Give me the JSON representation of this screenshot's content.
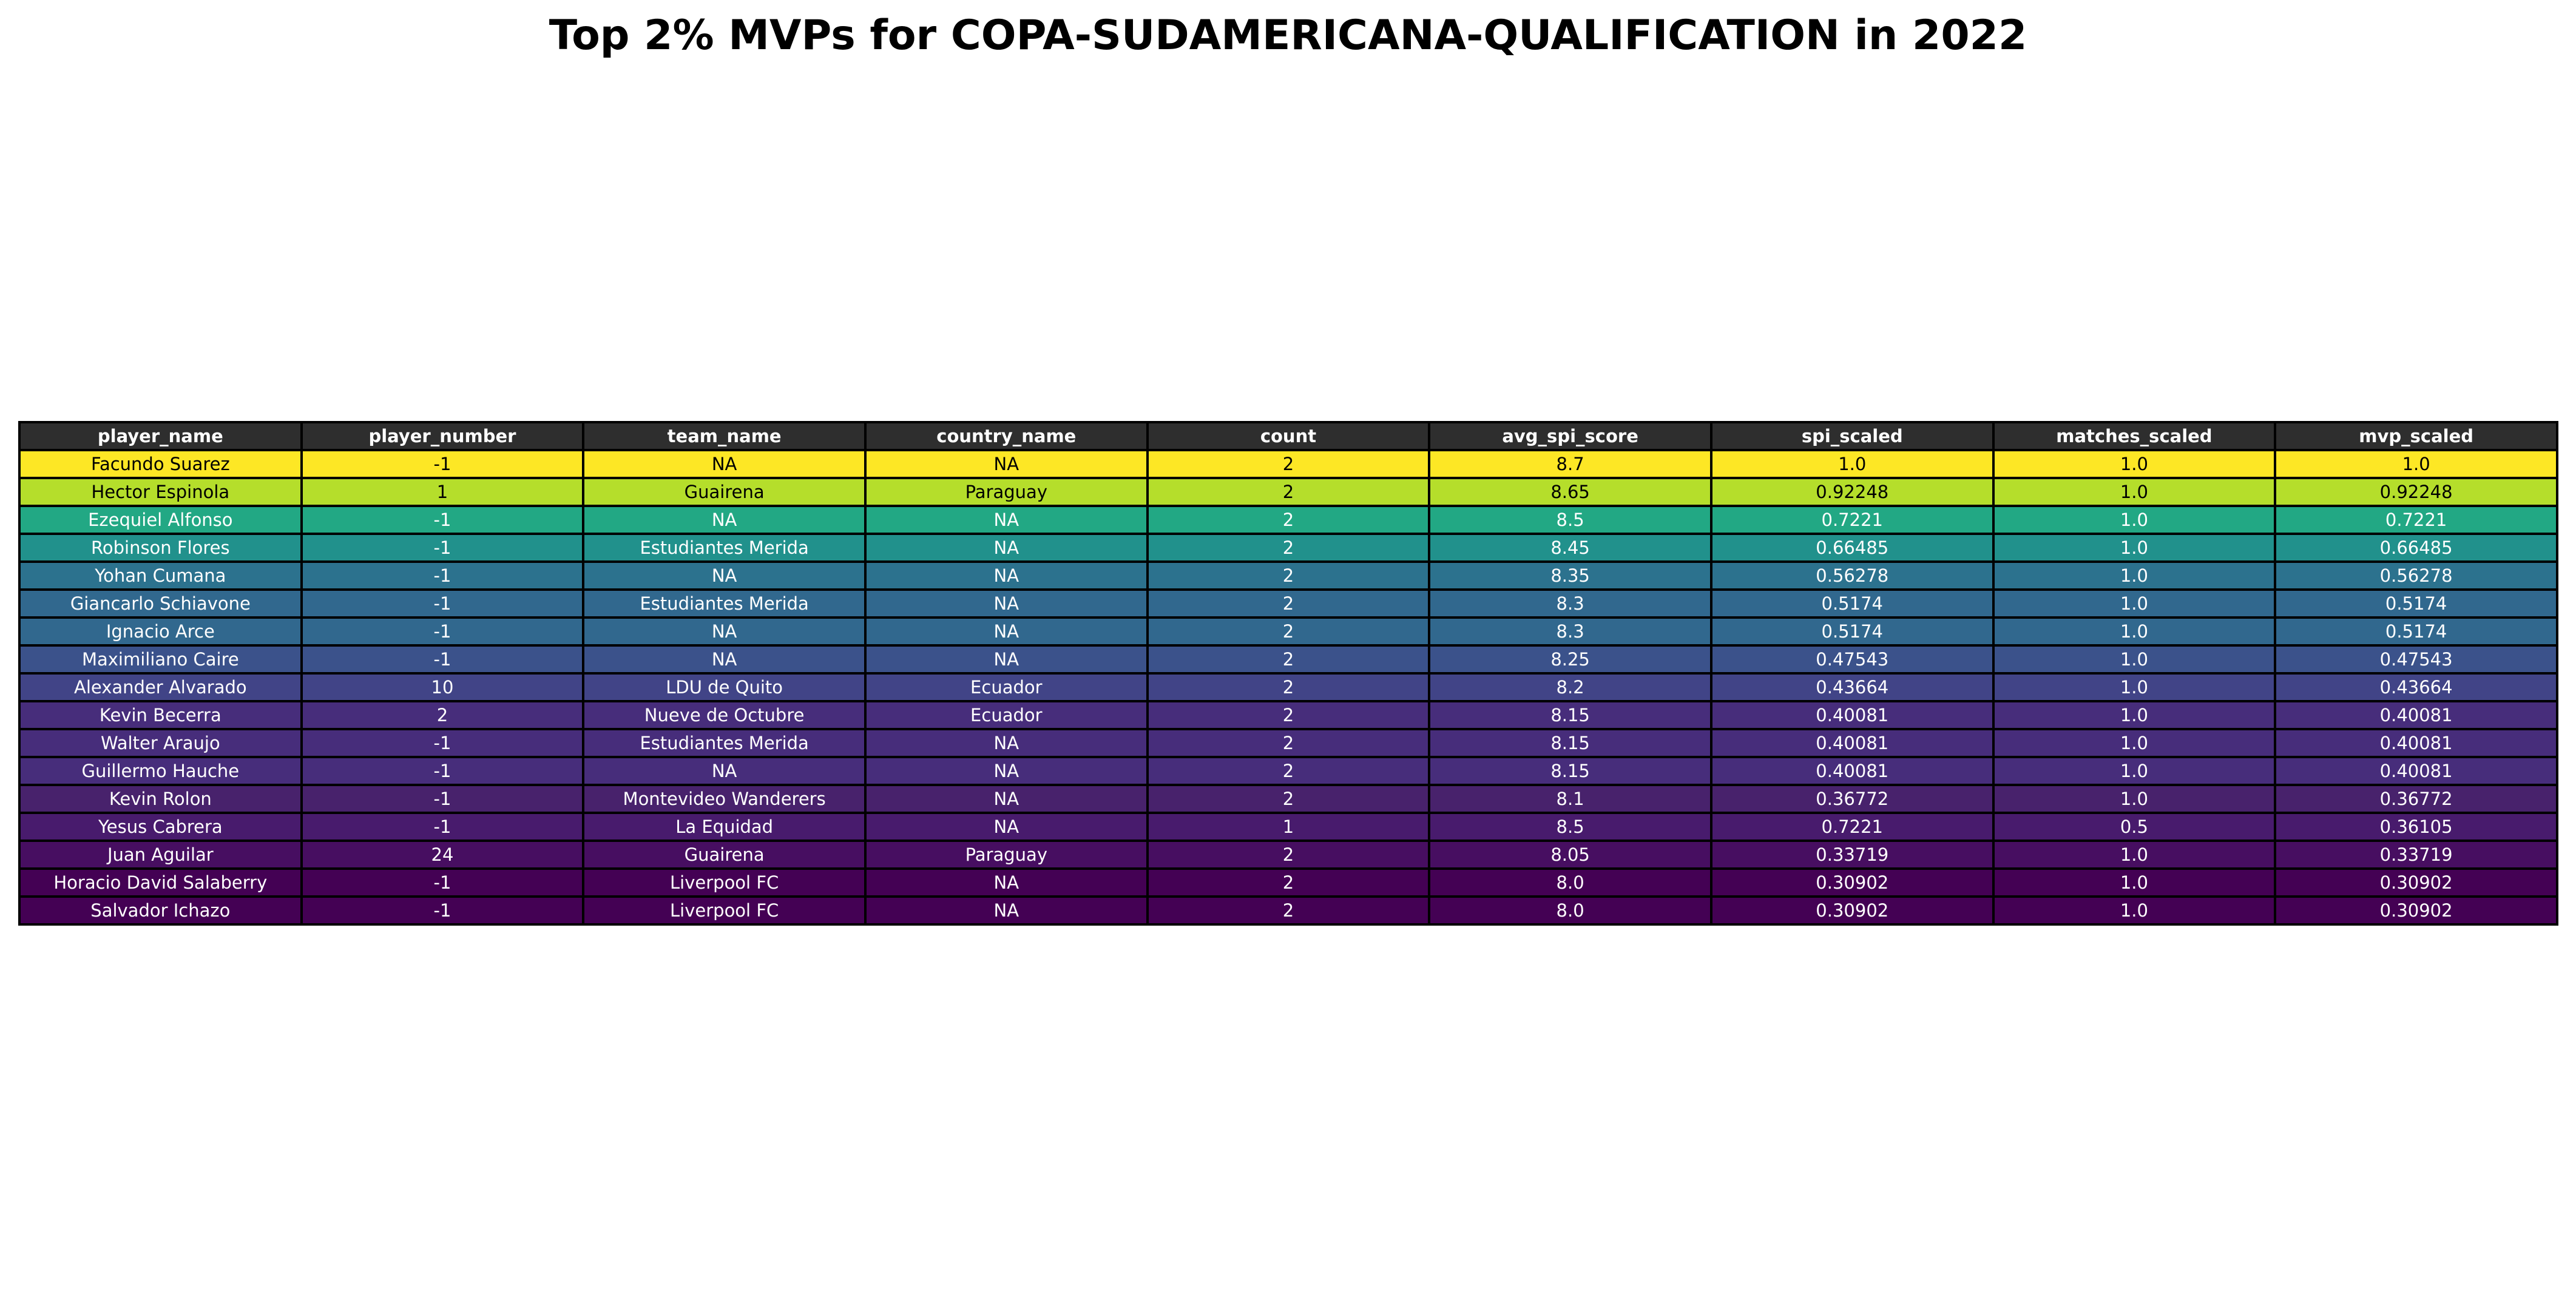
{
  "chart_data": {
    "type": "table",
    "title": "Top 2% MVPs for COPA-SUDAMERICANA-QUALIFICATION in 2022",
    "header_color": "#2e2e2e",
    "color_scale": "viridis",
    "columns": [
      "player_name",
      "player_number",
      "team_name",
      "country_name",
      "count",
      "avg_spi_score",
      "spi_scaled",
      "matches_scaled",
      "mvp_scaled"
    ],
    "rows": [
      {
        "cells": [
          "Facundo Suarez",
          "-1",
          "NA",
          "NA",
          "2",
          "8.7",
          "1.0",
          "1.0",
          "1.0"
        ],
        "color": "#fde725"
      },
      {
        "cells": [
          "Hector Espinola",
          "1",
          "Guairena",
          "Paraguay",
          "2",
          "8.65",
          "0.92248",
          "1.0",
          "0.92248"
        ],
        "color": "#b5de2b"
      },
      {
        "cells": [
          "Ezequiel Alfonso",
          "-1",
          "NA",
          "NA",
          "2",
          "8.5",
          "0.7221",
          "1.0",
          "0.7221"
        ],
        "color": "#22a884"
      },
      {
        "cells": [
          "Robinson Flores",
          "-1",
          "Estudiantes Merida",
          "NA",
          "2",
          "8.45",
          "0.66485",
          "1.0",
          "0.66485"
        ],
        "color": "#21918c"
      },
      {
        "cells": [
          "Yohan Cumana",
          "-1",
          "NA",
          "NA",
          "2",
          "8.35",
          "0.56278",
          "1.0",
          "0.56278"
        ],
        "color": "#2c728e"
      },
      {
        "cells": [
          "Giancarlo Schiavone",
          "-1",
          "Estudiantes Merida",
          "NA",
          "2",
          "8.3",
          "0.5174",
          "1.0",
          "0.5174"
        ],
        "color": "#31688e"
      },
      {
        "cells": [
          "Ignacio Arce",
          "-1",
          "NA",
          "NA",
          "2",
          "8.3",
          "0.5174",
          "1.0",
          "0.5174"
        ],
        "color": "#31688e"
      },
      {
        "cells": [
          "Maximiliano Caire",
          "-1",
          "NA",
          "NA",
          "2",
          "8.25",
          "0.47543",
          "1.0",
          "0.47543"
        ],
        "color": "#3b528b"
      },
      {
        "cells": [
          "Alexander Alvarado",
          "10",
          "LDU de Quito",
          "Ecuador",
          "2",
          "8.2",
          "0.43664",
          "1.0",
          "0.43664"
        ],
        "color": "#414487"
      },
      {
        "cells": [
          "Kevin Becerra",
          "2",
          "Nueve de Octubre",
          "Ecuador",
          "2",
          "8.15",
          "0.40081",
          "1.0",
          "0.40081"
        ],
        "color": "#472d7b"
      },
      {
        "cells": [
          "Walter Araujo",
          "-1",
          "Estudiantes Merida",
          "NA",
          "2",
          "8.15",
          "0.40081",
          "1.0",
          "0.40081"
        ],
        "color": "#472d7b"
      },
      {
        "cells": [
          "Guillermo Hauche",
          "-1",
          "NA",
          "NA",
          "2",
          "8.15",
          "0.40081",
          "1.0",
          "0.40081"
        ],
        "color": "#472d7b"
      },
      {
        "cells": [
          "Kevin Rolon",
          "-1",
          "Montevideo Wanderers",
          "NA",
          "2",
          "8.1",
          "0.36772",
          "1.0",
          "0.36772"
        ],
        "color": "#48226c"
      },
      {
        "cells": [
          "Yesus Cabrera",
          "-1",
          "La Equidad",
          "NA",
          "1",
          "8.5",
          "0.7221",
          "0.5",
          "0.36105"
        ],
        "color": "#481b6d"
      },
      {
        "cells": [
          "Juan Aguilar",
          "24",
          "Guairena",
          "Paraguay",
          "2",
          "8.05",
          "0.33719",
          "1.0",
          "0.33719"
        ],
        "color": "#470e61"
      },
      {
        "cells": [
          "Horacio David Salaberry",
          "-1",
          "Liverpool FC",
          "NA",
          "2",
          "8.0",
          "0.30902",
          "1.0",
          "0.30902"
        ],
        "color": "#440154"
      },
      {
        "cells": [
          "Salvador Ichazo",
          "-1",
          "Liverpool FC",
          "NA",
          "2",
          "8.0",
          "0.30902",
          "1.0",
          "0.30902"
        ],
        "color": "#440154"
      }
    ]
  }
}
